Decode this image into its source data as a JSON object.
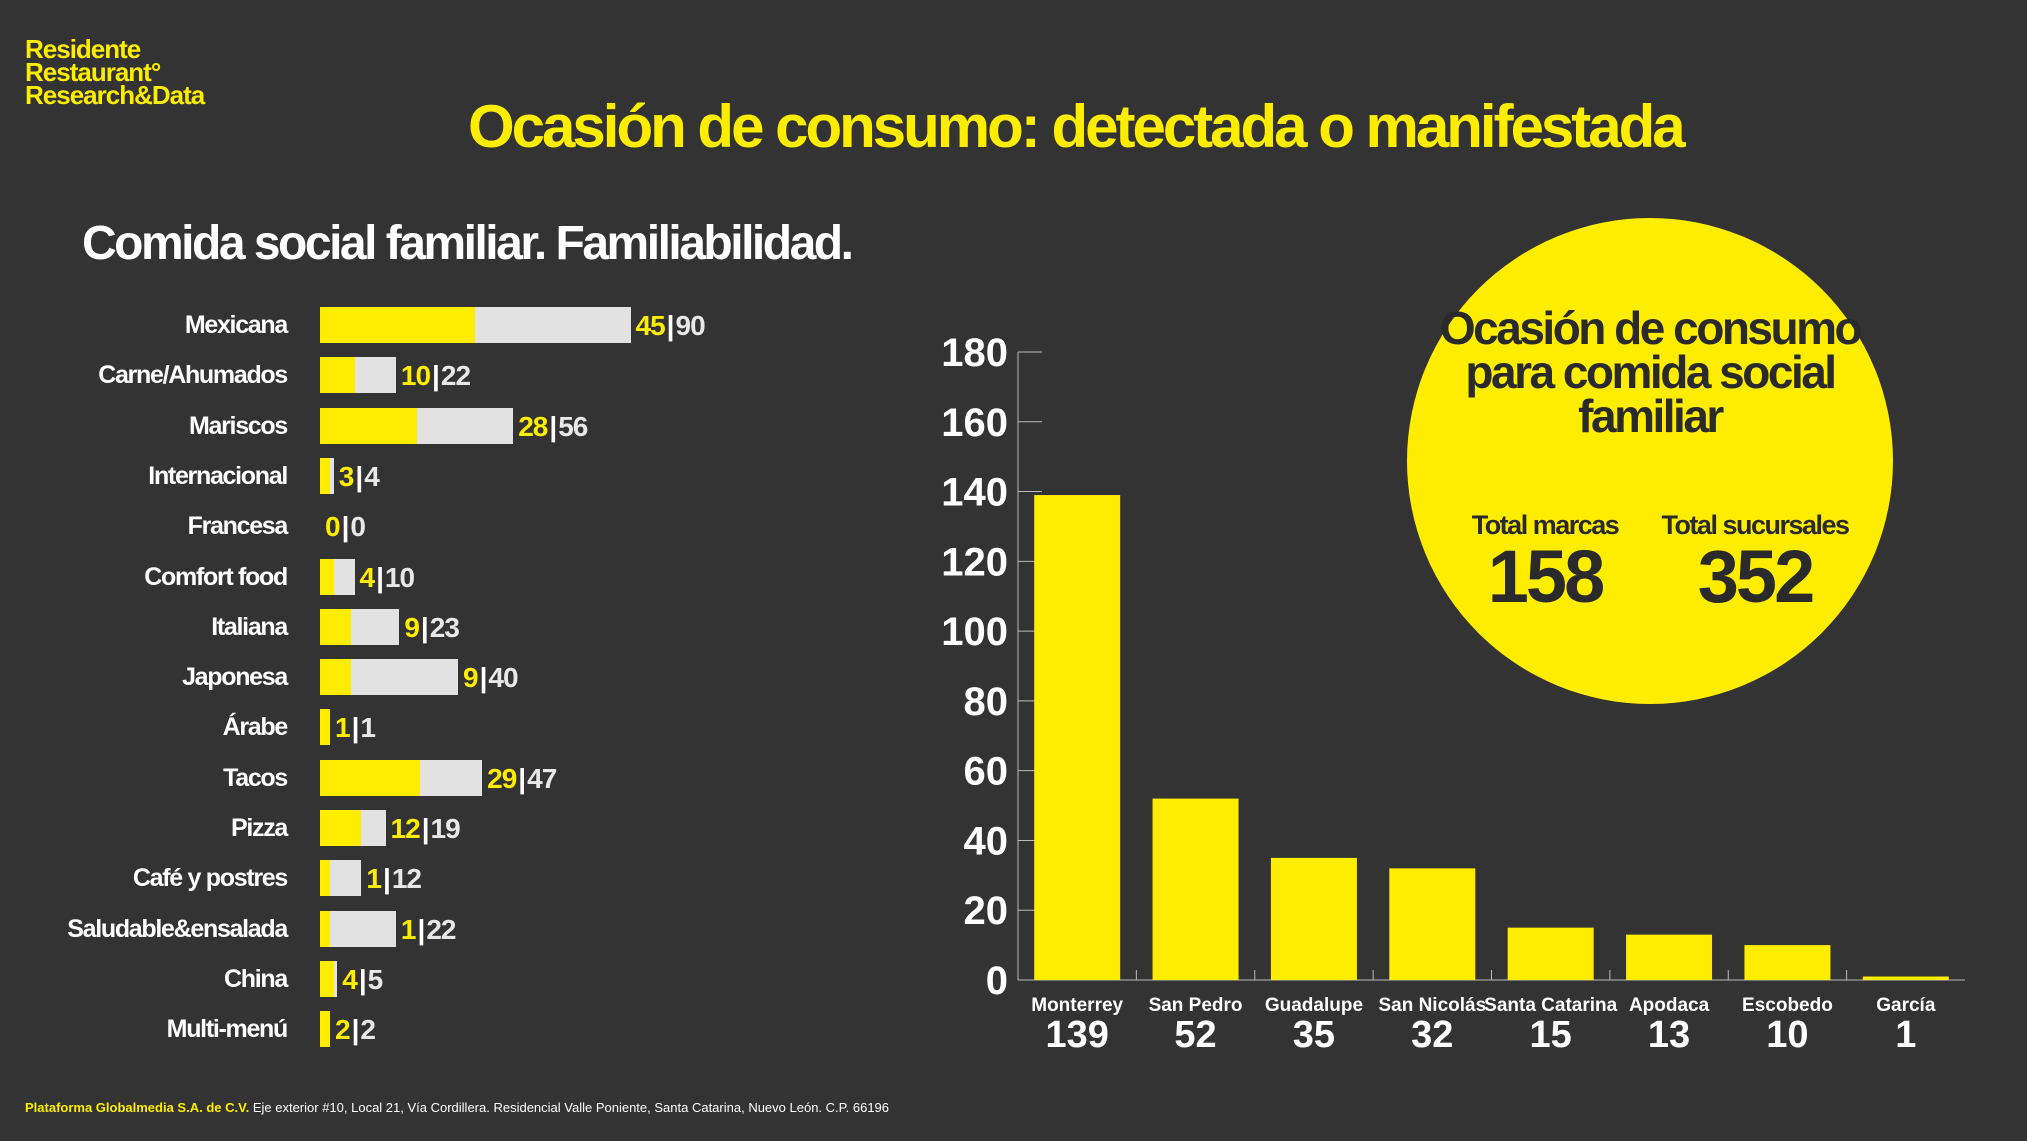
{
  "brand": {
    "logo_lines": [
      "Residente",
      "Restaurant°",
      "Research&Data"
    ]
  },
  "title": "Ocasión de consumo: detectada o manifestada",
  "subtitle": "Comida social familiar. Familiabilidad.",
  "colors": {
    "background": "#333333",
    "accent": "#ffed00",
    "bar_total": "#e2e2e2",
    "text": "#ffffff"
  },
  "chart_data": [
    {
      "type": "bar",
      "orientation": "horizontal",
      "title": "Comida social familiar. Familiabilidad.",
      "categories": [
        "Mexicana",
        "Carne/Ahumados",
        "Mariscos",
        "Internacional",
        "Francesa",
        "Comfort food",
        "Italiana",
        "Japonesa",
        "Árabe",
        "Tacos",
        "Pizza",
        "Café y postres",
        "Saludable&ensalada",
        "China",
        "Multi-menú"
      ],
      "series": [
        {
          "name": "Familiabilidad",
          "values": [
            45,
            10,
            28,
            3,
            0,
            4,
            9,
            9,
            1,
            29,
            12,
            1,
            1,
            4,
            2
          ]
        },
        {
          "name": "Total",
          "values": [
            90,
            22,
            56,
            4,
            0,
            10,
            23,
            40,
            1,
            47,
            19,
            12,
            22,
            5,
            2
          ]
        }
      ]
    },
    {
      "type": "bar",
      "orientation": "vertical",
      "title": "Ocasión de consumo para comida social familiar",
      "categories": [
        "Monterrey",
        "San Pedro",
        "Guadalupe",
        "San Nicolás",
        "Santa Catarina",
        "Apodaca",
        "Escobedo",
        "García"
      ],
      "values": [
        139,
        52,
        35,
        32,
        15,
        13,
        10,
        1
      ],
      "ylim": [
        0,
        180
      ],
      "yticks": [
        0,
        20,
        40,
        60,
        80,
        100,
        120,
        140,
        160,
        180
      ]
    }
  ],
  "summary": {
    "title": "Ocasión de consumo para comida social familiar",
    "total_marcas_label": "Total marcas",
    "total_marcas": "158",
    "total_sucursales_label": "Total sucursales",
    "total_sucursales": "352"
  },
  "footer": {
    "company": "Plataforma Globalmedia S.A. de C.V.",
    "address": "Eje exterior #10, Local 21, Vía Cordillera. Residencial Valle Poniente, Santa Catarina, Nuevo León. C.P. 66196"
  }
}
